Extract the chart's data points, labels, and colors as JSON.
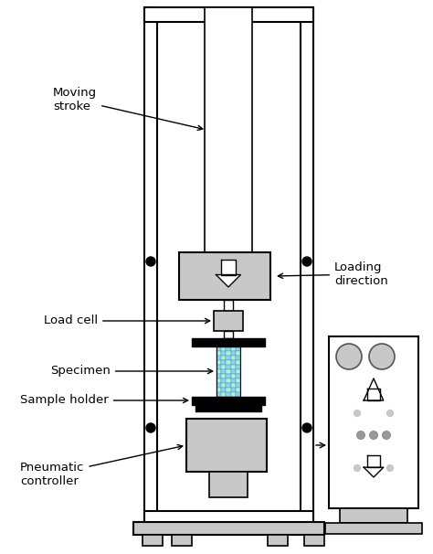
{
  "bg_color": "#ffffff",
  "black": "#000000",
  "lgray": "#c8c8c8",
  "labels": {
    "moving_stroke": "Moving\nstroke",
    "load_cell": "Load cell",
    "specimen": "Specimen",
    "sample_holder": "Sample holder",
    "pneumatic_controller": "Pneumatic\ncontroller",
    "loading_direction": "Loading\ndirection"
  },
  "fig_width": 4.74,
  "fig_height": 6.06,
  "dpi": 100
}
